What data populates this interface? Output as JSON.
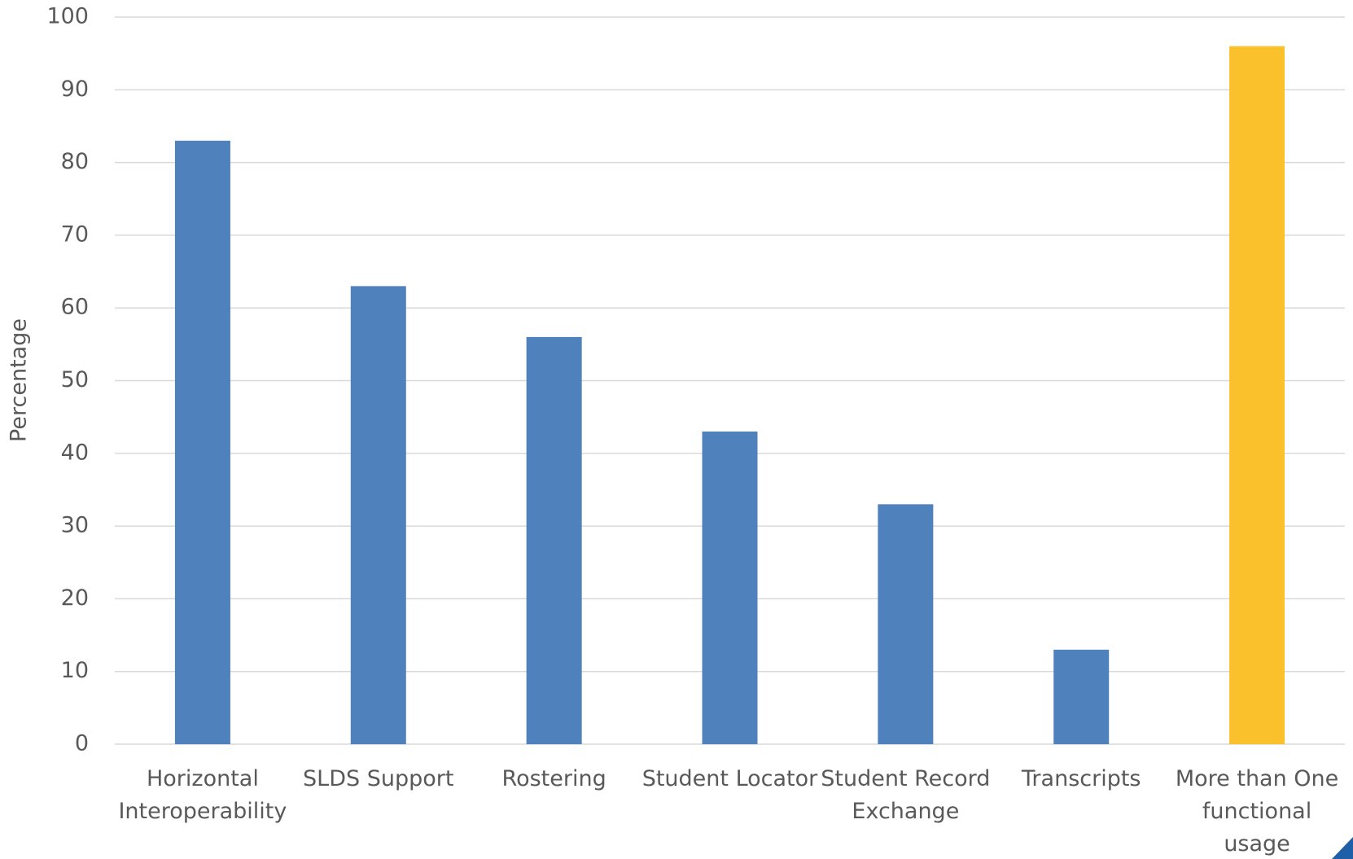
{
  "chart_data": {
    "type": "bar",
    "ylabel": "Percentage",
    "categories": [
      "Horizontal Interoperability",
      "SLDS Support",
      "Rostering",
      "Student Locator",
      "Student Record Exchange",
      "Transcripts",
      "More than One functional usage"
    ],
    "values": [
      83,
      63,
      56,
      43,
      33,
      13,
      96
    ],
    "colors": [
      "#4f81bd",
      "#4f81bd",
      "#4f81bd",
      "#4f81bd",
      "#4f81bd",
      "#4f81bd",
      "#fbc12c"
    ],
    "ylim": [
      0,
      100
    ],
    "yticks": [
      0,
      10,
      20,
      30,
      40,
      50,
      60,
      70,
      80,
      90,
      100
    ],
    "grid": true
  }
}
